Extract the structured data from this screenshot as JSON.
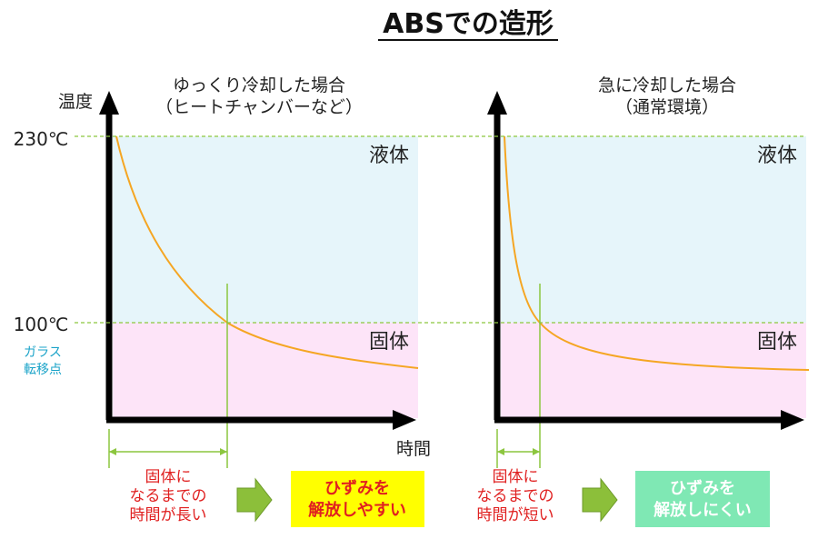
{
  "title": "ABSでの造形",
  "y_axis_label": "温度",
  "x_axis_label": "時間",
  "temp_high": "230℃",
  "temp_low": "100℃",
  "glass_transition": [
    "ガラス",
    "転移点"
  ],
  "left_panel": {
    "heading": [
      "ゆっくり冷却した場合",
      "（ヒートチャンバーなど）"
    ],
    "liquid_label": "液体",
    "solid_label": "固体",
    "note": [
      "固体に",
      "なるまでの",
      "時間が長い"
    ],
    "result": [
      "ひずみを",
      "解放しやすい"
    ]
  },
  "right_panel": {
    "heading": [
      "急に冷却した場合",
      "（通常環境）"
    ],
    "liquid_label": "液体",
    "solid_label": "固体",
    "note": [
      "固体に",
      "なるまでの",
      "時間が短い"
    ],
    "result": [
      "ひずみを",
      "解放しにくい"
    ]
  },
  "colors": {
    "liquid_zone": "#e6f5fa",
    "solid_zone": "#fde4f8",
    "curve": "#f5a623",
    "guide": "#8cc63f",
    "note_text": "#e02020",
    "glass_text": "#1aa3c8",
    "result_left_bg": "#ffff00",
    "result_right_bg": "#7fe8b4"
  }
}
